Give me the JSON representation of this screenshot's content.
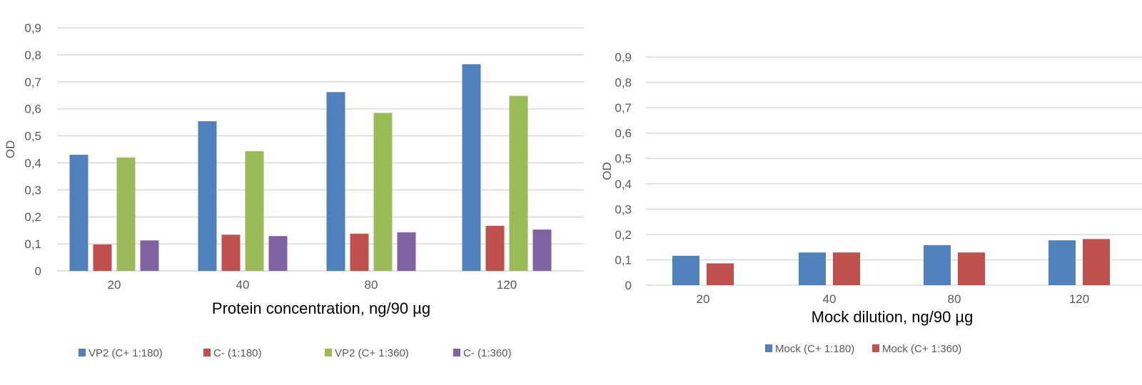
{
  "chart_data": [
    {
      "type": "bar",
      "title": "",
      "xlabel": "Protein concentration, ng/90 µg",
      "ylabel": "OD",
      "ylim": [
        0,
        0.9
      ],
      "yticks": [
        "0",
        "0,1",
        "0,2",
        "0,3",
        "0,4",
        "0,5",
        "0,6",
        "0,7",
        "0,8",
        "0,9"
      ],
      "grid": true,
      "legend": "bottom",
      "categories": [
        "20",
        "40",
        "80",
        "120"
      ],
      "series": [
        {
          "name": "VP2 (C+ 1:180)",
          "color": "#4f81bd",
          "values": [
            0.43,
            0.554,
            0.662,
            0.765
          ]
        },
        {
          "name": "C- (1:180)",
          "color": "#c0504d",
          "values": [
            0.098,
            0.134,
            0.138,
            0.167
          ]
        },
        {
          "name": "VP2  (C+ 1:360)",
          "color": "#9bbb59",
          "values": [
            0.42,
            0.443,
            0.585,
            0.648
          ]
        },
        {
          "name": "C- (1:360)",
          "color": "#8064a2",
          "values": [
            0.113,
            0.129,
            0.143,
            0.153
          ]
        }
      ]
    },
    {
      "type": "bar",
      "title": "",
      "xlabel": "Mock dilution, ng/90 µg",
      "ylabel": "OD",
      "ylim": [
        0,
        0.9
      ],
      "yticks": [
        "0",
        "0,1",
        "0,2",
        "0,3",
        "0,4",
        "0,5",
        "0,6",
        "0,7",
        "0,8",
        "0,9"
      ],
      "grid": true,
      "legend": "bottom",
      "categories": [
        "20",
        "40",
        "80",
        "120"
      ],
      "series": [
        {
          "name": "Mock (C+ 1:180)",
          "color": "#4f81bd",
          "values": [
            0.116,
            0.129,
            0.158,
            0.177
          ]
        },
        {
          "name": "Mock (C+ 1:360)",
          "color": "#c0504d",
          "values": [
            0.086,
            0.129,
            0.129,
            0.182
          ]
        }
      ]
    }
  ]
}
